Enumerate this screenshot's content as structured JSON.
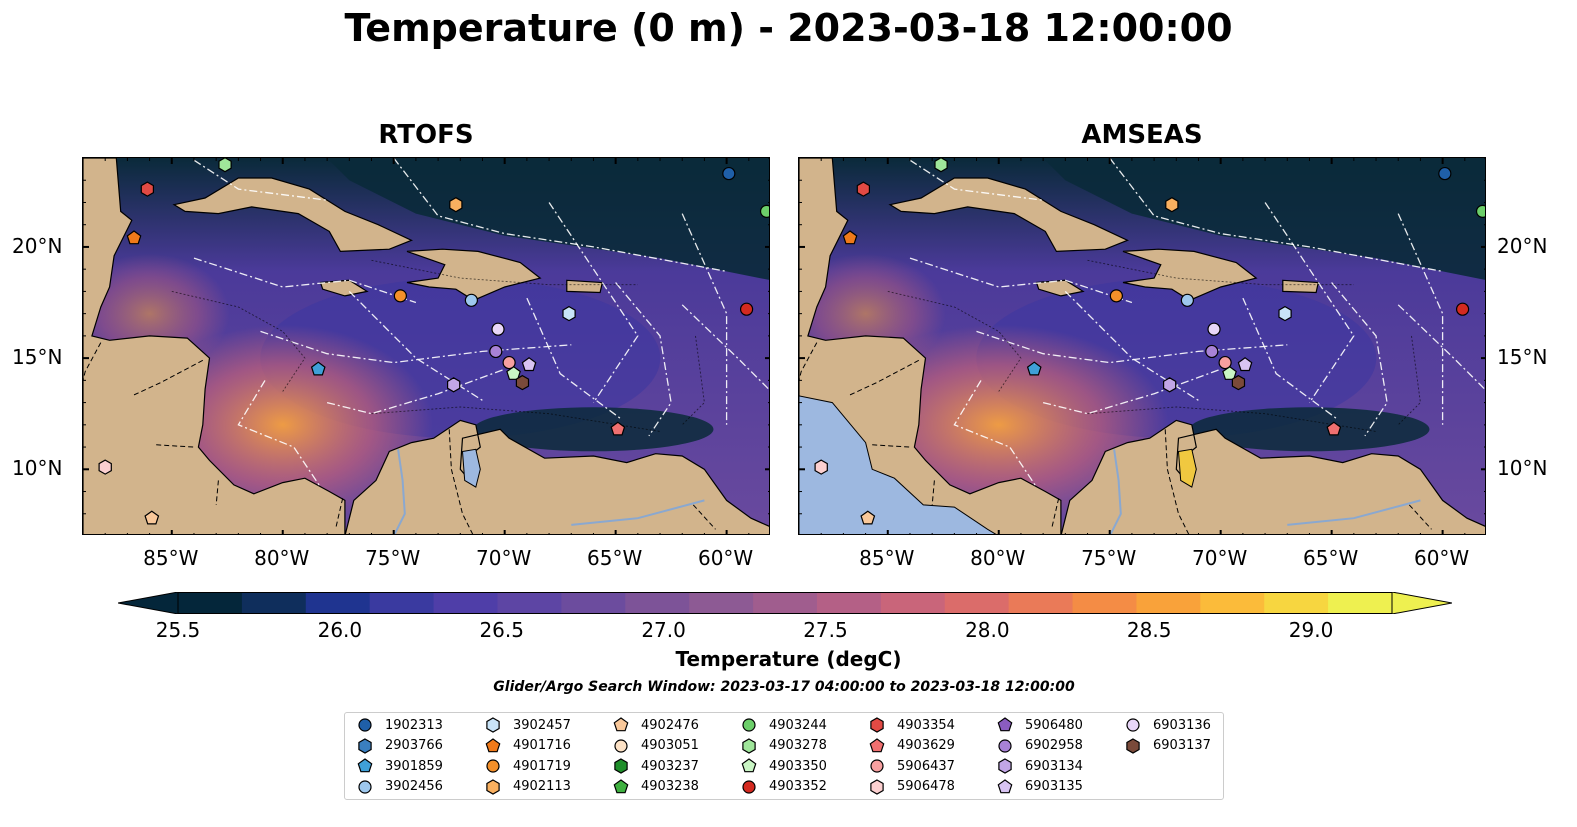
{
  "title": "Temperature (0 m) - 2023-03-18 12:00:00",
  "panels": [
    {
      "title": "RTOFS"
    },
    {
      "title": "AMSEAS"
    }
  ],
  "axes": {
    "lon_ticks": [
      "85°W",
      "80°W",
      "75°W",
      "70°W",
      "65°W",
      "60°W"
    ],
    "lat_ticks": [
      "20°N",
      "15°N",
      "10°N"
    ]
  },
  "colors": {
    "land": "#d2b48c",
    "land_masked_amseas": "#9db8e0",
    "dark_sea": "#0a2a3a",
    "mid_sea": "#4b3a9a",
    "warm_sea": "#c0607a",
    "hot_sea": "#f5a040"
  },
  "colorbar": {
    "label": "Temperature (degC)",
    "ticks": [
      "25.5",
      "26.0",
      "26.5",
      "27.0",
      "27.5",
      "28.0",
      "28.5",
      "29.0"
    ],
    "min": 25.5,
    "max": 29.25,
    "colors": [
      "#04263a",
      "#0f2e5c",
      "#1f3490",
      "#3a3aa0",
      "#4f3ea8",
      "#5d45a4",
      "#6c4c9e",
      "#7d5398",
      "#8d5a94",
      "#a05d8e",
      "#b46086",
      "#c9657a",
      "#db6c6a",
      "#ea7a58",
      "#f48c45",
      "#f9a23a",
      "#fbbb3a",
      "#f7d640",
      "#eef050"
    ]
  },
  "search_window": "Glider/Argo Search Window: 2023-03-17 04:00:00 to 2023-03-18 12:00:00",
  "chart_data": {
    "type": "heatmap",
    "title": "Temperature (0 m) - 2023-03-18 12:00:00",
    "panels": [
      "RTOFS",
      "AMSEAS"
    ],
    "colorbar_label": "Temperature (degC)",
    "value_range": [
      25.5,
      29.25
    ],
    "lon_range": [
      -89,
      -58
    ],
    "lat_range": [
      7,
      24
    ],
    "markers": [
      {
        "id": "1902313",
        "shape": "circle",
        "color": "#1f5fa8",
        "lon": -59.9,
        "lat": 23.3
      },
      {
        "id": "2903766",
        "shape": "hexagon",
        "color": "#3a7fc0",
        "lon": null,
        "lat": null
      },
      {
        "id": "3901859",
        "shape": "pentagon",
        "color": "#3fa0d8",
        "lon": -78.4,
        "lat": 14.5
      },
      {
        "id": "3902456",
        "shape": "circle",
        "color": "#9ec8ee",
        "lon": -71.5,
        "lat": 17.6
      },
      {
        "id": "3902457",
        "shape": "hexagon",
        "color": "#c9e4f8",
        "lon": -67.1,
        "lat": 17.0
      },
      {
        "id": "4901716",
        "shape": "pentagon",
        "color": "#f07a1a",
        "lon": -86.7,
        "lat": 20.4
      },
      {
        "id": "4901719",
        "shape": "circle",
        "color": "#f4902a",
        "lon": -74.7,
        "lat": 17.8
      },
      {
        "id": "4902113",
        "shape": "hexagon",
        "color": "#f9b060",
        "lon": -72.2,
        "lat": 21.9
      },
      {
        "id": "4902476",
        "shape": "pentagon",
        "color": "#f9c89a",
        "lon": -85.9,
        "lat": 7.8
      },
      {
        "id": "4903051",
        "shape": "circle",
        "color": "#fde2c6",
        "lon": null,
        "lat": null
      },
      {
        "id": "4903237",
        "shape": "hexagon",
        "color": "#1f8f2a",
        "lon": null,
        "lat": null
      },
      {
        "id": "4903238",
        "shape": "pentagon",
        "color": "#3fb040",
        "lon": null,
        "lat": null
      },
      {
        "id": "4903244",
        "shape": "circle",
        "color": "#6ccf6a",
        "lon": -58.2,
        "lat": 21.6
      },
      {
        "id": "4903278",
        "shape": "hexagon",
        "color": "#9fe69a",
        "lon": -82.6,
        "lat": 23.7
      },
      {
        "id": "4903350",
        "shape": "pentagon",
        "color": "#c9f5c4",
        "lon": -69.6,
        "lat": 14.3
      },
      {
        "id": "4903352",
        "shape": "circle",
        "color": "#d42a20",
        "lon": -59.1,
        "lat": 17.2
      },
      {
        "id": "4903354",
        "shape": "hexagon",
        "color": "#e24a44",
        "lon": -86.1,
        "lat": 22.6
      },
      {
        "id": "4903629",
        "shape": "pentagon",
        "color": "#f07070",
        "lon": -64.9,
        "lat": 11.8
      },
      {
        "id": "5906437",
        "shape": "circle",
        "color": "#f7a0a0",
        "lon": -69.8,
        "lat": 14.8
      },
      {
        "id": "5906478",
        "shape": "hexagon",
        "color": "#fcd0d0",
        "lon": -88.0,
        "lat": 10.1
      },
      {
        "id": "5906480",
        "shape": "pentagon",
        "color": "#8a5cc0",
        "lon": null,
        "lat": null
      },
      {
        "id": "6902958",
        "shape": "circle",
        "color": "#a882d6",
        "lon": -70.4,
        "lat": 15.3
      },
      {
        "id": "6903134",
        "shape": "hexagon",
        "color": "#c2a6e6",
        "lon": -72.3,
        "lat": 13.8
      },
      {
        "id": "6903135",
        "shape": "pentagon",
        "color": "#d8c4f2",
        "lon": -68.9,
        "lat": 14.7
      },
      {
        "id": "6903136",
        "shape": "circle",
        "color": "#e8d6f8",
        "lon": -70.3,
        "lat": 16.3
      },
      {
        "id": "6903137",
        "shape": "hexagon",
        "color": "#7a4a3a",
        "lon": -69.2,
        "lat": 13.9
      }
    ]
  }
}
